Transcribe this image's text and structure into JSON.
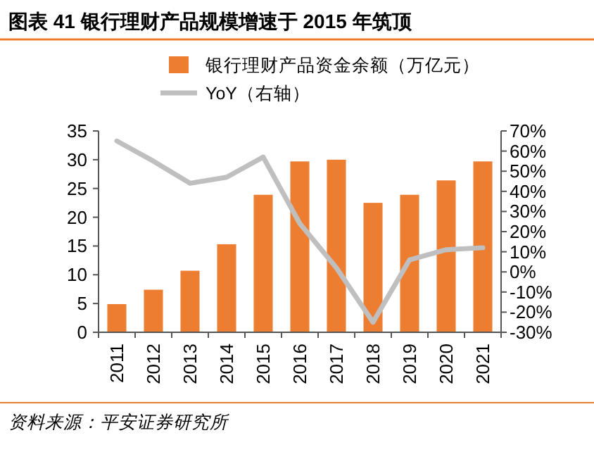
{
  "chart_data": {
    "type": "bar",
    "title": "图表 41  银行理财产品规模增速于 2015 年筑顶",
    "categories": [
      "2011",
      "2012",
      "2013",
      "2014",
      "2015",
      "2016",
      "2017",
      "2018",
      "2019",
      "2020",
      "2021"
    ],
    "series": [
      {
        "name": "银行理财产品资金余额（万亿元）",
        "color": "#ed7d31",
        "values": [
          4.9,
          7.4,
          10.7,
          15.3,
          23.9,
          29.7,
          30.0,
          22.5,
          23.9,
          26.4,
          29.7
        ]
      },
      {
        "name": "YoY（右轴）",
        "type": "line",
        "axis": "y2",
        "color": "#bfbfbf",
        "values": [
          65,
          55,
          44,
          47,
          57,
          24,
          2,
          -25,
          6,
          11,
          12
        ]
      }
    ],
    "ylim": [
      0,
      35
    ],
    "yticks": [
      0,
      5,
      10,
      15,
      20,
      25,
      30,
      35
    ],
    "y2lim": [
      -30,
      70
    ],
    "y2ticks": [
      {
        "value": -30,
        "label": "-30%"
      },
      {
        "value": -20,
        "label": "-20%"
      },
      {
        "value": -10,
        "label": "-10%"
      },
      {
        "value": 0,
        "label": "0%"
      },
      {
        "value": 10,
        "label": "10%"
      },
      {
        "value": 20,
        "label": "20%"
      },
      {
        "value": 30,
        "label": "30%"
      },
      {
        "value": 40,
        "label": "40%"
      },
      {
        "value": 50,
        "label": "50%"
      },
      {
        "value": 60,
        "label": "60%"
      },
      {
        "value": 70,
        "label": "70%"
      }
    ],
    "legend": "top",
    "grid": false,
    "annotations": [
      "资料来源：平安证券研究所"
    ]
  }
}
